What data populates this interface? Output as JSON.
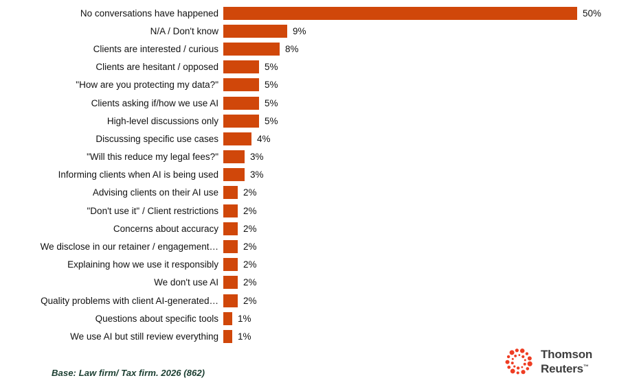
{
  "chart_data": {
    "type": "bar",
    "orientation": "horizontal",
    "title": "",
    "xlabel": "",
    "ylabel": "",
    "xlim": [
      0,
      50
    ],
    "grid": false,
    "legend": false,
    "value_suffix": "%",
    "categories": [
      "No conversations have happened",
      "N/A / Don't know",
      "Clients are interested / curious",
      "Clients are hesitant / opposed",
      "\"How are you protecting my data?\"",
      "Clients asking if/how we use AI",
      "High-level discussions only",
      "Discussing specific use cases",
      "\"Will this reduce my legal fees?\"",
      "Informing clients when AI is being used",
      "Advising clients on their AI use",
      "\"Don't use it\" / Client restrictions",
      "Concerns about accuracy",
      "We disclose in our retainer / engagement…",
      "Explaining how we use it responsibly",
      "We don't use AI",
      "Quality problems with client AI-generated…",
      "Questions about specific tools",
      "We use AI but still review everything"
    ],
    "values": [
      50,
      9,
      8,
      5,
      5,
      5,
      5,
      4,
      3,
      3,
      2,
      2,
      2,
      2,
      2,
      2,
      2,
      1,
      1
    ]
  },
  "footer": {
    "base_note": "Base: Law firm/ Tax firm. 2026 (862)",
    "logo": {
      "line1": "Thomson",
      "line2": "Reuters",
      "tm": "™",
      "icon": "thomson-reuters-kinesis-dotted-circle"
    }
  },
  "colors": {
    "bar": "#d0470a",
    "label_text": "#111111",
    "base_note_green": "#1d4033",
    "logo_red": "#ee3d23",
    "logo_text_gray": "#3d3d3d",
    "background": "#ffffff"
  }
}
